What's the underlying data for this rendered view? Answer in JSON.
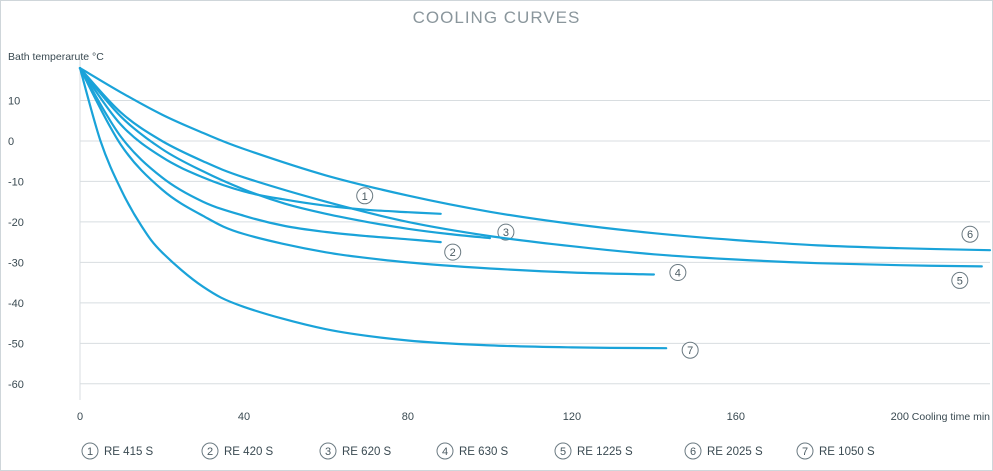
{
  "chart_data": {
    "type": "line",
    "title": "COOLING CURVES",
    "ylabel": "Bath temperarute °C",
    "xlabel": "Cooling time min",
    "xlim": [
      0,
      222
    ],
    "ylim": [
      -64,
      20
    ],
    "xticks": [
      0,
      40,
      80,
      120,
      160,
      200
    ],
    "yticks": [
      10,
      0,
      -10,
      -20,
      -30,
      -40,
      -50,
      -60
    ],
    "grid": "horizontal",
    "legend_position": "bottom",
    "colors": {
      "line": "#1aa3d9",
      "grid": "#d8dde0",
      "text": "#3a4a52",
      "title": "#8a969c"
    },
    "series": [
      {
        "id": "1",
        "name": "RE 415 S",
        "x": [
          0,
          10,
          20,
          30,
          40,
          50,
          60,
          70,
          80,
          88
        ],
        "y": [
          18,
          4,
          -4,
          -9,
          -12.5,
          -14.5,
          -16,
          -17,
          -17.6,
          -18
        ]
      },
      {
        "id": "2",
        "name": "RE 420 S",
        "x": [
          0,
          10,
          20,
          30,
          40,
          50,
          60,
          70,
          80,
          88
        ],
        "y": [
          18,
          1,
          -9,
          -15,
          -18.5,
          -21,
          -22.5,
          -23.5,
          -24.3,
          -25
        ]
      },
      {
        "id": "3",
        "name": "RE 620 S",
        "x": [
          0,
          10,
          20,
          30,
          40,
          50,
          60,
          70,
          80,
          90,
          100
        ],
        "y": [
          18,
          6,
          -2,
          -7.5,
          -12,
          -15.5,
          -18,
          -20,
          -21.7,
          -23,
          -24
        ]
      },
      {
        "id": "4",
        "name": "RE 630 S",
        "x": [
          0,
          10,
          20,
          30,
          40,
          60,
          80,
          100,
          120,
          140
        ],
        "y": [
          18,
          -1,
          -12,
          -18.5,
          -23,
          -27.5,
          -30,
          -31.5,
          -32.5,
          -33
        ]
      },
      {
        "id": "5",
        "name": "RE 1225 S",
        "x": [
          0,
          10,
          20,
          30,
          40,
          60,
          80,
          100,
          120,
          140,
          160,
          180,
          200,
          220
        ],
        "y": [
          18,
          7,
          0,
          -5,
          -9,
          -15,
          -20,
          -23.5,
          -26,
          -28,
          -29.3,
          -30.2,
          -30.7,
          -31
        ]
      },
      {
        "id": "6",
        "name": "RE 2025 S",
        "x": [
          0,
          10,
          20,
          30,
          40,
          60,
          80,
          100,
          120,
          140,
          160,
          180,
          200,
          222
        ],
        "y": [
          18,
          12,
          6.5,
          2,
          -2,
          -8.5,
          -13.5,
          -17.5,
          -20.5,
          -22.8,
          -24.5,
          -25.8,
          -26.5,
          -27
        ]
      },
      {
        "id": "7",
        "name": "RE 1050 S",
        "x": [
          0,
          5,
          10,
          15,
          20,
          30,
          40,
          60,
          80,
          100,
          120,
          143
        ],
        "y": [
          18,
          0,
          -12,
          -21,
          -27.5,
          -36,
          -41,
          -46.5,
          -49.3,
          -50.5,
          -51,
          -51.2
        ]
      }
    ]
  }
}
